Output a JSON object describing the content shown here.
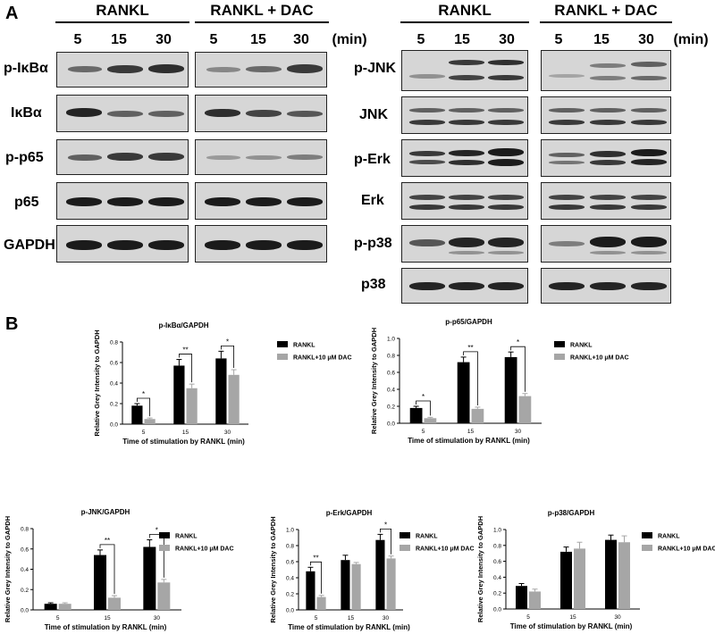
{
  "panel_a": {
    "letter": "A",
    "left": {
      "group_labels": [
        "RANKL",
        "RANKL + DAC"
      ],
      "timepoints": [
        "5",
        "15",
        "30"
      ],
      "unit": "(min)",
      "rows": [
        "p-IκBα",
        "IκBα",
        "p-p65",
        "p65",
        "GAPDH"
      ]
    },
    "right": {
      "group_labels": [
        "RANKL",
        "RANKL + DAC"
      ],
      "timepoints": [
        "5",
        "15",
        "30"
      ],
      "unit": "(min)",
      "rows": [
        "p-JNK",
        "JNK",
        "p-Erk",
        "Erk",
        "p-p38",
        "p38"
      ]
    }
  },
  "panel_b": {
    "letter": "B"
  },
  "colors": {
    "rankl": "#000000",
    "dac": "#a6a6a6"
  },
  "chart_data": [
    {
      "type": "bar",
      "title": "p-IκBα/GAPDH",
      "xlabel": "Time of stimulation by RANKL (min)",
      "ylabel": "Relative Grey Intensity to GAPDH",
      "categories": [
        "5",
        "15",
        "30"
      ],
      "series": [
        {
          "name": "RANKL",
          "values": [
            0.18,
            0.57,
            0.64
          ],
          "errors": [
            0.02,
            0.06,
            0.07
          ]
        },
        {
          "name": "RANKL+10 μM DAC",
          "values": [
            0.05,
            0.35,
            0.48
          ],
          "errors": [
            0.01,
            0.04,
            0.05
          ]
        }
      ],
      "ylim": [
        0,
        0.8
      ],
      "yticks": [
        "0.0",
        "0.2",
        "0.4",
        "0.6",
        "0.8"
      ],
      "significance": [
        "*",
        "**",
        "*"
      ]
    },
    {
      "type": "bar",
      "title": "p-p65/GAPDH",
      "xlabel": "Time of stimulation by RANKL (min)",
      "ylabel": "Relative Grey Intensity to GAPDH",
      "categories": [
        "5",
        "15",
        "30"
      ],
      "series": [
        {
          "name": "RANKL",
          "values": [
            0.18,
            0.72,
            0.78
          ],
          "errors": [
            0.02,
            0.06,
            0.06
          ]
        },
        {
          "name": "RANKL+10 μM DAC",
          "values": [
            0.06,
            0.17,
            0.32
          ],
          "errors": [
            0.01,
            0.02,
            0.03
          ]
        }
      ],
      "ylim": [
        0,
        1.0
      ],
      "yticks": [
        "0.0",
        "0.2",
        "0.4",
        "0.6",
        "0.8",
        "1.0"
      ],
      "significance": [
        "*",
        "**",
        "*"
      ]
    },
    {
      "type": "bar",
      "title": "p-JNK/GAPDH",
      "xlabel": "Time of stimulation by RANKL (min)",
      "ylabel": "Relative Grey Intensity to GAPDH",
      "categories": [
        "5",
        "15",
        "30"
      ],
      "series": [
        {
          "name": "RANKL",
          "values": [
            0.06,
            0.54,
            0.62
          ],
          "errors": [
            0.01,
            0.05,
            0.07
          ]
        },
        {
          "name": "RANKL+10 μM DAC",
          "values": [
            0.06,
            0.12,
            0.27
          ],
          "errors": [
            0.01,
            0.02,
            0.03
          ]
        }
      ],
      "ylim": [
        0,
        0.8
      ],
      "yticks": [
        "0.0",
        "0.2",
        "0.4",
        "0.6",
        "0.8"
      ],
      "significance": [
        "",
        "**",
        "*"
      ]
    },
    {
      "type": "bar",
      "title": "p-Erk/GAPDH",
      "xlabel": "Time of stimulation by RANKL (min)",
      "ylabel": "Relative Grey Intensity to GAPDH",
      "categories": [
        "5",
        "15",
        "30"
      ],
      "series": [
        {
          "name": "RANKL",
          "values": [
            0.48,
            0.62,
            0.87
          ],
          "errors": [
            0.05,
            0.06,
            0.07
          ]
        },
        {
          "name": "RANKL+10 μM DAC",
          "values": [
            0.16,
            0.57,
            0.64
          ],
          "errors": [
            0.02,
            0.02,
            0.03
          ]
        }
      ],
      "ylim": [
        0,
        1.0
      ],
      "yticks": [
        "0.0",
        "0.2",
        "0.4",
        "0.6",
        "0.8",
        "1.0"
      ],
      "significance": [
        "**",
        "",
        "*"
      ]
    },
    {
      "type": "bar",
      "title": "p-p38/GAPDH",
      "xlabel": "Time of stimulation by RANKL (min)",
      "ylabel": "Relative Grey Intensity to GAPDH",
      "categories": [
        "5",
        "15",
        "30"
      ],
      "series": [
        {
          "name": "RANKL",
          "values": [
            0.29,
            0.72,
            0.87
          ],
          "errors": [
            0.03,
            0.06,
            0.06
          ]
        },
        {
          "name": "RANKL+10 μM DAC",
          "values": [
            0.22,
            0.76,
            0.84
          ],
          "errors": [
            0.03,
            0.08,
            0.08
          ]
        }
      ],
      "ylim": [
        0,
        1.0
      ],
      "yticks": [
        "0.0",
        "0.2",
        "0.4",
        "0.6",
        "0.8",
        "1.0"
      ],
      "significance": [
        "",
        "",
        ""
      ]
    }
  ]
}
